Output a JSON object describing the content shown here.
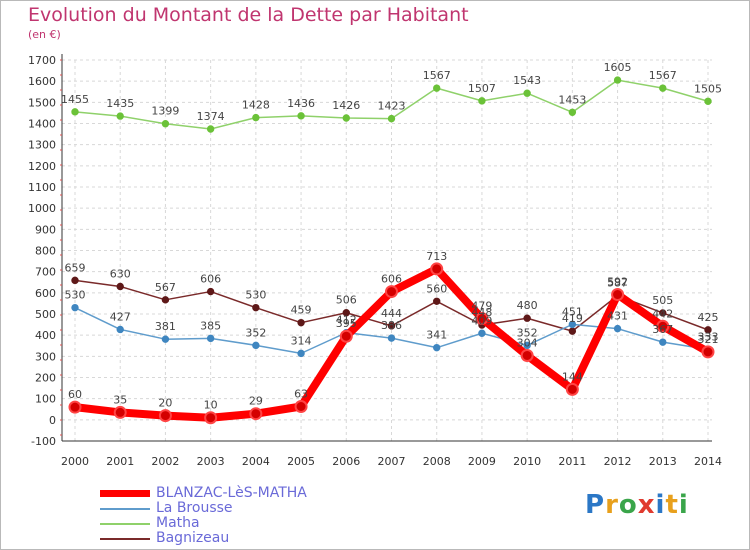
{
  "title": "Evolution du Montant de la Dette par Habitant",
  "subtitle": "(en €)",
  "logo": {
    "text": "Proxiti",
    "colors": [
      "#2b77c6",
      "#e8a01c",
      "#3aa54a",
      "#e03a2e",
      "#2b77c6",
      "#e8a01c",
      "#3aa54a"
    ]
  },
  "chart_data": {
    "type": "line",
    "xlabel": "",
    "ylabel": "",
    "ylim": [
      -100,
      1700
    ],
    "yticks": [
      -100,
      0,
      100,
      200,
      300,
      400,
      500,
      600,
      700,
      800,
      900,
      1000,
      1100,
      1200,
      1300,
      1400,
      1500,
      1600,
      1700
    ],
    "x": [
      "2000",
      "2001",
      "2002",
      "2003",
      "2004",
      "2005",
      "2006",
      "2007",
      "2008",
      "2009",
      "2010",
      "2011",
      "2012",
      "2013",
      "2014"
    ],
    "grid": true,
    "legend_position": "bottom-left",
    "series": [
      {
        "name": "Matha",
        "color": "#8fd16a",
        "marker": "#6bc238",
        "values": [
          1455,
          1435,
          1399,
          1374,
          1428,
          1436,
          1426,
          1423,
          1567,
          1507,
          1543,
          1453,
          1605,
          1567,
          1505
        ]
      },
      {
        "name": "Bagnizeau",
        "color": "#7a2a2a",
        "marker": "#5e1818",
        "values": [
          659,
          630,
          567,
          606,
          530,
          459,
          506,
          444,
          560,
          448,
          480,
          419,
          587,
          505,
          425
        ]
      },
      {
        "name": "La Brousse",
        "color": "#5f9ccc",
        "marker": "#3f86c0",
        "values": [
          530,
          427,
          381,
          385,
          352,
          314,
          412,
          386,
          341,
          409,
          352,
          451,
          431,
          367,
          333
        ]
      },
      {
        "name": "BLANZAC-LèS-MATHA",
        "color": "#ff0000",
        "marker": "#d40000",
        "values": [
          60,
          35,
          20,
          10,
          29,
          63,
          395,
          606,
          713,
          479,
          304,
          144,
          592,
          442,
          321
        ]
      }
    ],
    "data_labels": [
      {
        "series": "Matha",
        "labels": [
          "1455",
          "1435",
          "1399",
          "1374",
          "1428",
          "1436",
          "1426",
          "1423",
          "1567",
          "1507",
          "1543",
          "1453",
          "1605",
          "1567",
          "1505"
        ]
      },
      {
        "series": "Bagnizeau",
        "labels": [
          "659",
          "630",
          "567",
          "606",
          "530",
          "459",
          "506",
          "444",
          "560",
          "448",
          "480",
          "419",
          "587",
          "505",
          "425"
        ]
      },
      {
        "series": "La Brousse",
        "labels": [
          "530",
          "427",
          "381",
          "385",
          "352",
          "314",
          "412",
          "386",
          "341",
          "409",
          "352",
          "451",
          "431",
          "367",
          "333"
        ]
      },
      {
        "series": "BLANZAC-LèS-MATHA",
        "labels": [
          "60",
          "35",
          "20",
          "10",
          "29",
          "63",
          "395",
          "606",
          "713",
          "479",
          "304",
          "144",
          "592",
          "442",
          "321"
        ]
      }
    ]
  },
  "legend": [
    {
      "label": "BLANZAC-LèS-MATHA",
      "color": "#ff0000",
      "thick": true
    },
    {
      "label": "La Brousse",
      "color": "#5f9ccc",
      "thick": false
    },
    {
      "label": "Matha",
      "color": "#8fd16a",
      "thick": false
    },
    {
      "label": "Bagnizeau",
      "color": "#7a2a2a",
      "thick": false
    }
  ]
}
